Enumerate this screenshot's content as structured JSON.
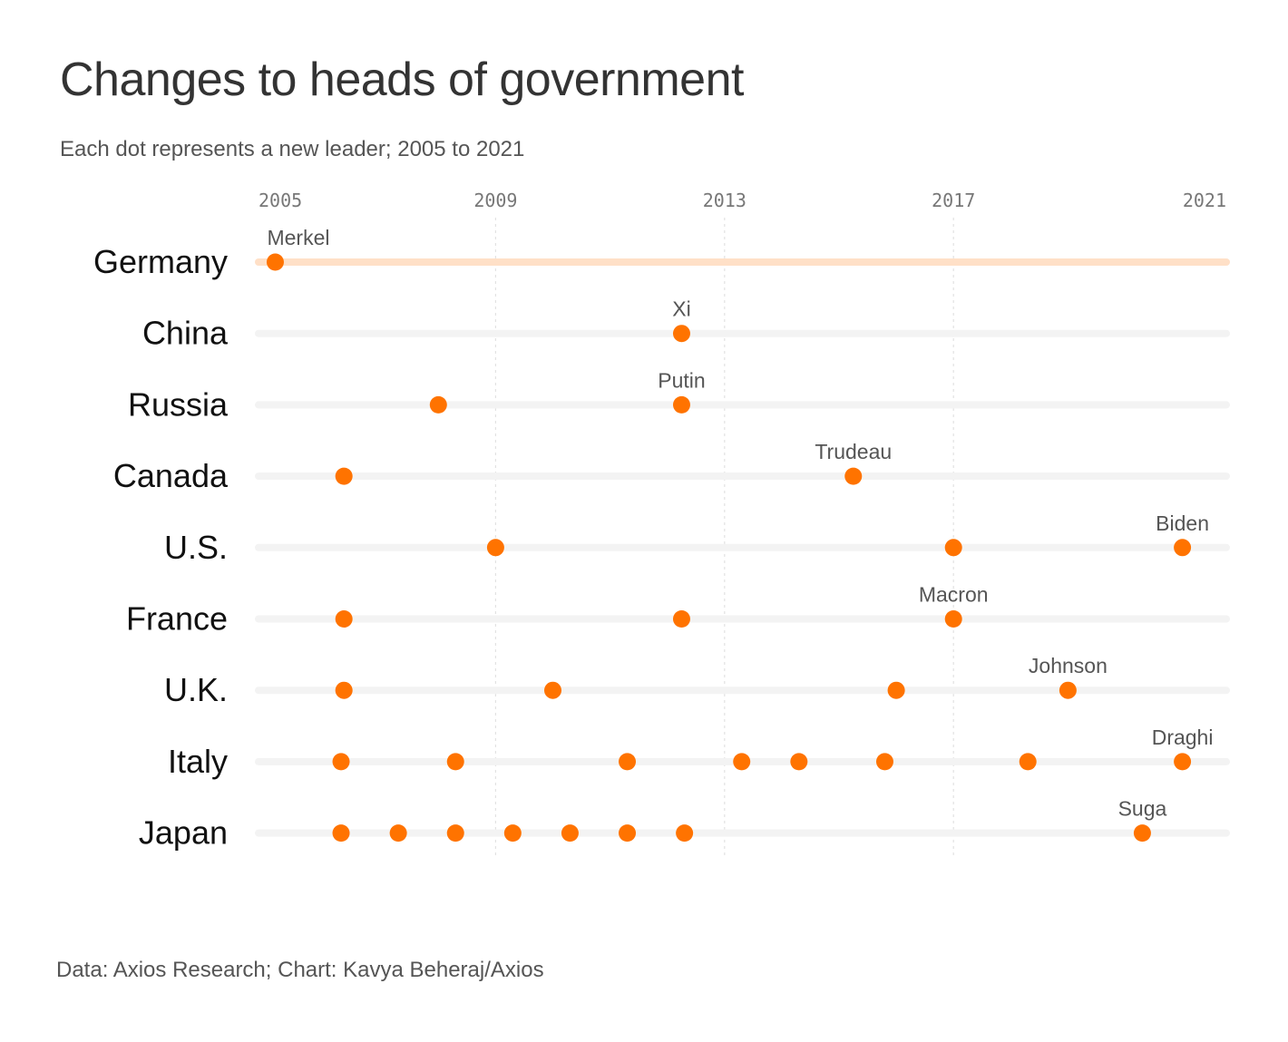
{
  "title": "Changes to heads of government",
  "subtitle": "Each dot represents a new leader; 2005 to 2021",
  "source": "Data: Axios Research; Chart: Kavya Beheraj/Axios",
  "colors": {
    "dot": "#FF7300",
    "highlight_track": "#FFE0C7",
    "track": "#F3F3F3",
    "grid": "#E2E2E2"
  },
  "chart_data": {
    "type": "scatter",
    "title": "Changes to heads of government",
    "subtitle": "Each dot represents a new leader; 2005 to 2021",
    "xlabel": "",
    "ylabel": "",
    "xlim": [
      2005,
      2021.5
    ],
    "xticks": [
      "2005",
      "2009",
      "2013",
      "2017",
      "2021"
    ],
    "categories": [
      "Germany",
      "China",
      "Russia",
      "Canada",
      "U.S.",
      "France",
      "U.K.",
      "Italy",
      "Japan"
    ],
    "series": [
      {
        "name": "Germany",
        "highlight": true,
        "x": [
          2005.15
        ],
        "labels": [
          {
            "x": 2005.15,
            "text": "Merkel"
          }
        ]
      },
      {
        "name": "China",
        "x": [
          2012.25
        ],
        "labels": [
          {
            "x": 2012.25,
            "text": "Xi"
          }
        ]
      },
      {
        "name": "Russia",
        "x": [
          2008.0,
          2012.25
        ],
        "labels": [
          {
            "x": 2012.25,
            "text": "Putin"
          }
        ]
      },
      {
        "name": "Canada",
        "x": [
          2006.35,
          2015.25
        ],
        "labels": [
          {
            "x": 2015.25,
            "text": "Trudeau"
          }
        ]
      },
      {
        "name": "U.S.",
        "x": [
          2009.0,
          2017.0,
          2021.0
        ],
        "labels": [
          {
            "x": 2021.0,
            "text": "Biden"
          }
        ]
      },
      {
        "name": "France",
        "x": [
          2006.35,
          2012.25,
          2017.0
        ],
        "labels": [
          {
            "x": 2017.0,
            "text": "Macron"
          }
        ]
      },
      {
        "name": "U.K.",
        "x": [
          2006.35,
          2010.0,
          2016.0,
          2019.0
        ],
        "labels": [
          {
            "x": 2019.0,
            "text": "Johnson"
          }
        ]
      },
      {
        "name": "Italy",
        "x": [
          2006.3,
          2008.3,
          2011.3,
          2013.3,
          2014.3,
          2015.8,
          2018.3,
          2021.0
        ],
        "labels": [
          {
            "x": 2021.0,
            "text": "Draghi"
          }
        ]
      },
      {
        "name": "Japan",
        "x": [
          2006.3,
          2007.3,
          2008.3,
          2009.3,
          2010.3,
          2011.3,
          2012.3,
          2020.3
        ],
        "labels": [
          {
            "x": 2020.3,
            "text": "Suga"
          }
        ]
      }
    ]
  }
}
